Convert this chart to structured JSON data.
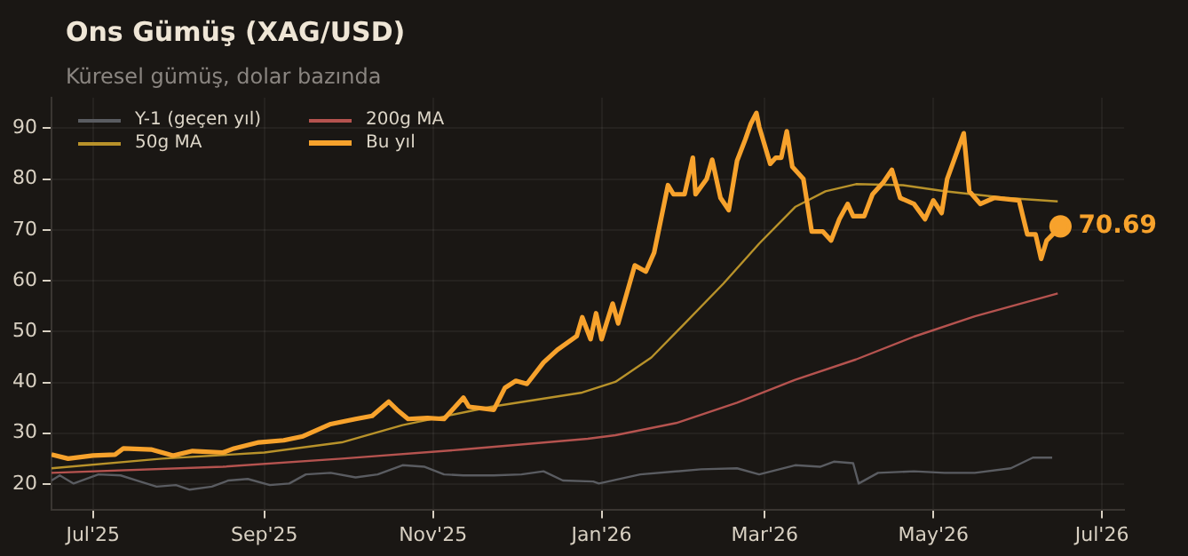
{
  "chart_data": {
    "type": "line",
    "title": "Ons Gümüş (XAG/USD)",
    "subtitle": "Küresel gümüş, dolar bazında",
    "xlim": [
      "2025-06-16",
      "2026-07-09"
    ],
    "ylim": [
      15,
      96
    ],
    "xticks": [
      {
        "value": "2025-07-01",
        "label": "Jul'25"
      },
      {
        "value": "2025-09-01",
        "label": "Sep'25"
      },
      {
        "value": "2025-11-01",
        "label": "Nov'25"
      },
      {
        "value": "2026-01-01",
        "label": "Jan'26"
      },
      {
        "value": "2026-03-01",
        "label": "Mar'26"
      },
      {
        "value": "2026-05-01",
        "label": "May'26"
      },
      {
        "value": "2026-07-01",
        "label": "Jul'26"
      }
    ],
    "yticks": [
      20,
      30,
      40,
      50,
      60,
      70,
      80,
      90
    ],
    "grid": true,
    "legend": "top left",
    "marker": "none",
    "series": [
      {
        "name": "Y-1 (geçen yıl)",
        "color": "#5a5c61",
        "x": [
          "2025-06-16",
          "2025-06-19",
          "2025-06-24",
          "2025-07-03",
          "2025-07-11",
          "2025-07-18",
          "2025-07-24",
          "2025-07-31",
          "2025-08-05",
          "2025-08-13",
          "2025-08-19",
          "2025-08-26",
          "2025-09-03",
          "2025-09-10",
          "2025-09-16",
          "2025-09-25",
          "2025-10-04",
          "2025-10-12",
          "2025-10-21",
          "2025-10-29",
          "2025-11-05",
          "2025-11-12",
          "2025-11-23",
          "2025-12-03",
          "2025-12-11",
          "2025-12-18",
          "2025-12-29",
          "2025-12-31",
          "2026-01-15",
          "2026-02-06",
          "2026-02-19",
          "2026-02-27",
          "2026-03-12",
          "2026-03-21",
          "2026-03-26",
          "2026-04-02",
          "2026-04-04",
          "2026-04-11",
          "2026-04-24",
          "2026-05-05",
          "2026-05-16",
          "2026-05-29",
          "2026-06-06",
          "2026-06-13"
        ],
        "values": [
          20.7,
          21.7,
          20.1,
          21.9,
          21.7,
          20.5,
          19.5,
          19.8,
          18.9,
          19.5,
          20.7,
          21,
          19.8,
          20.1,
          21.9,
          22.2,
          21.3,
          21.9,
          23.7,
          23.4,
          21.9,
          21.7,
          21.7,
          21.9,
          22.5,
          20.7,
          20.5,
          20.1,
          21.9,
          22.9,
          23.1,
          21.9,
          23.7,
          23.4,
          24.4,
          24.1,
          20.1,
          22.2,
          22.5,
          22.2,
          22.2,
          23.1,
          25.2,
          25.2
        ]
      },
      {
        "name": "200g MA",
        "color": "#b5534f",
        "x": [
          "2025-06-16",
          "2025-08-17",
          "2025-09-29",
          "2025-11-12",
          "2025-12-27",
          "2026-01-06",
          "2026-01-28",
          "2026-02-19",
          "2026-03-12",
          "2026-04-03",
          "2026-04-24",
          "2026-05-16",
          "2026-06-15"
        ],
        "values": [
          22.2,
          23.4,
          25,
          26.8,
          28.9,
          29.6,
          32,
          36,
          40.5,
          44.5,
          49,
          53,
          57.5
        ]
      },
      {
        "name": "50g MA",
        "color": "#b8922a",
        "x": [
          "2025-06-16",
          "2025-07-26",
          "2025-09-01",
          "2025-09-29",
          "2025-10-21",
          "2025-11-22",
          "2025-12-25",
          "2026-01-06",
          "2026-01-19",
          "2026-01-30",
          "2026-02-14",
          "2026-02-27",
          "2026-03-12",
          "2026-03-23",
          "2026-04-03",
          "2026-04-20",
          "2026-05-05",
          "2026-05-27",
          "2026-06-15"
        ],
        "values": [
          23.1,
          25,
          26.2,
          28.2,
          31.6,
          35.2,
          38,
          40.1,
          44.9,
          51,
          59.4,
          67.3,
          74.5,
          77.6,
          79,
          78.8,
          77.6,
          76.3,
          75.6
        ]
      },
      {
        "name": "Bu yıl",
        "color": "#f7a22c",
        "x": [
          "2025-06-16",
          "2025-06-22",
          "2025-07-01",
          "2025-07-09",
          "2025-07-12",
          "2025-07-22",
          "2025-07-30",
          "2025-08-06",
          "2025-08-17",
          "2025-08-21",
          "2025-08-30",
          "2025-09-08",
          "2025-09-15",
          "2025-09-25",
          "2025-10-04",
          "2025-10-10",
          "2025-10-16",
          "2025-10-19",
          "2025-10-23",
          "2025-10-30",
          "2025-11-05",
          "2025-11-12",
          "2025-11-14",
          "2025-11-23",
          "2025-11-27",
          "2025-12-01",
          "2025-12-05",
          "2025-12-11",
          "2025-12-16",
          "2025-12-23",
          "2025-12-25",
          "2025-12-28",
          "2025-12-30",
          "2026-01-01",
          "2026-01-05",
          "2026-01-07",
          "2026-01-13",
          "2026-01-17",
          "2026-01-20",
          "2026-01-25",
          "2026-01-27",
          "2026-01-31",
          "2026-02-03",
          "2026-02-04",
          "2026-02-08",
          "2026-02-10",
          "2026-02-13",
          "2026-02-16",
          "2026-02-19",
          "2026-02-22",
          "2026-02-24",
          "2026-02-26",
          "2026-02-27",
          "2026-03-03",
          "2026-03-05",
          "2026-03-07",
          "2026-03-09",
          "2026-03-11",
          "2026-03-15",
          "2026-03-18",
          "2026-03-22",
          "2026-03-25",
          "2026-03-28",
          "2026-03-31",
          "2026-04-02",
          "2026-04-06",
          "2026-04-09",
          "2026-04-13",
          "2026-04-16",
          "2026-04-19",
          "2026-04-24",
          "2026-04-28",
          "2026-05-01",
          "2026-05-04",
          "2026-05-06",
          "2026-05-12",
          "2026-05-14",
          "2026-05-18",
          "2026-05-23",
          "2026-06-01",
          "2026-06-04",
          "2026-06-07",
          "2026-06-09",
          "2026-06-11",
          "2026-06-16"
        ],
        "values": [
          25.8,
          25,
          25.6,
          25.8,
          27,
          26.8,
          25.6,
          26.5,
          26.2,
          27,
          28.2,
          28.6,
          29.4,
          31.8,
          32.8,
          33.4,
          36.2,
          34.6,
          32.8,
          33,
          32.8,
          37,
          35.2,
          34.6,
          38.9,
          40.3,
          39.7,
          43.9,
          46.4,
          49.1,
          52.8,
          48.5,
          53.6,
          48.5,
          55.5,
          51.6,
          63,
          61.8,
          65.5,
          78.8,
          77,
          77,
          84.2,
          77,
          80,
          83.8,
          76.3,
          73.9,
          83.6,
          87.8,
          90.9,
          93,
          90.3,
          83,
          84.2,
          84.2,
          89.4,
          82.4,
          80,
          69.7,
          69.7,
          67.9,
          72.1,
          75.1,
          72.7,
          72.7,
          77,
          79.4,
          81.8,
          76.3,
          75.1,
          72.1,
          75.8,
          73.3,
          80,
          89,
          77.6,
          75.1,
          76.3,
          75.8,
          69.1,
          69.1,
          64.3,
          67.9,
          70.69
        ],
        "value_labels": [
          null,
          null,
          null,
          null,
          null,
          null,
          null,
          null,
          null,
          null,
          null,
          null,
          null,
          null,
          null,
          null,
          null,
          null,
          null,
          null,
          null,
          null,
          null,
          null,
          null,
          null,
          null,
          null,
          null,
          null,
          null,
          null,
          null,
          null,
          null,
          null,
          null,
          null,
          null,
          null,
          null,
          null,
          null,
          null,
          null,
          null,
          null,
          null,
          null,
          null,
          null,
          null,
          null,
          null,
          null,
          null,
          null,
          null,
          null,
          null,
          null,
          null,
          null,
          null,
          null,
          null,
          null,
          null,
          null,
          null,
          null,
          null,
          null,
          null,
          null,
          null,
          null,
          null,
          null,
          null,
          null,
          null,
          null,
          null,
          "70.69"
        ]
      }
    ]
  }
}
